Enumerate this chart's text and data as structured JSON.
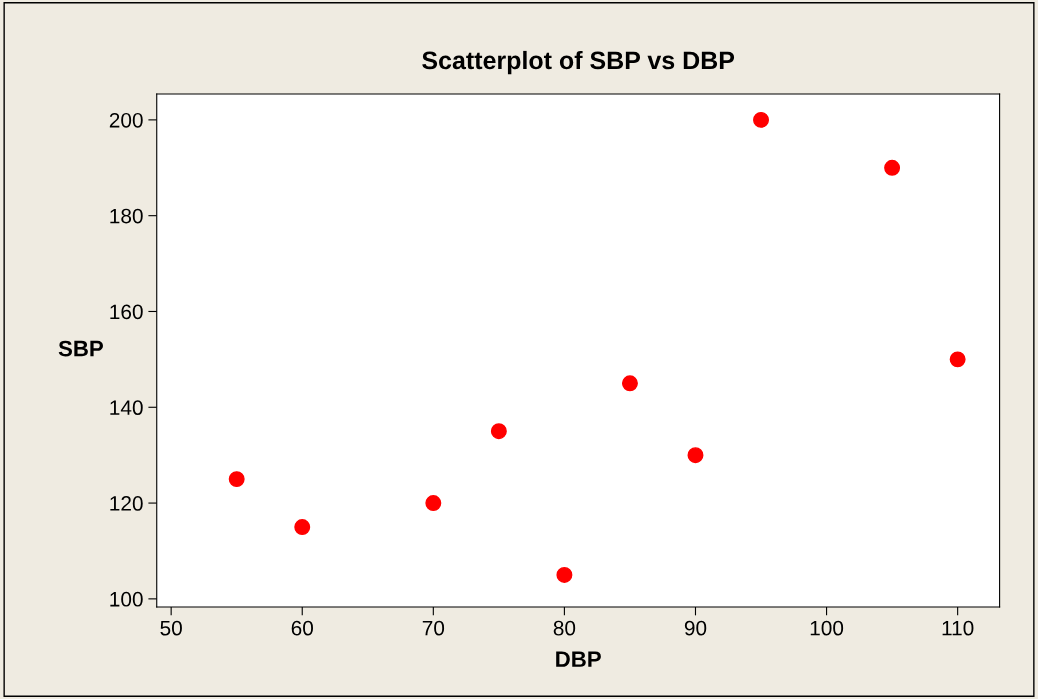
{
  "chart_data": {
    "type": "scatter",
    "title": "Scatterplot of SBP vs DBP",
    "xlabel": "DBP",
    "ylabel": "SBP",
    "x": [
      55,
      60,
      70,
      75,
      80,
      85,
      90,
      95,
      105,
      110
    ],
    "series": [
      {
        "color": "#ff0000",
        "values": [
          125,
          115,
          120,
          135,
          105,
          145,
          130,
          200,
          190,
          150
        ]
      }
    ],
    "xlim": [
      48.9,
      113.2
    ],
    "ylim": [
      98.3,
      205.4
    ],
    "xticks": [
      50,
      60,
      70,
      80,
      90,
      100,
      110
    ],
    "yticks": [
      100,
      120,
      140,
      160,
      180,
      200
    ],
    "marker": "circle",
    "grid": false,
    "legend": false
  }
}
